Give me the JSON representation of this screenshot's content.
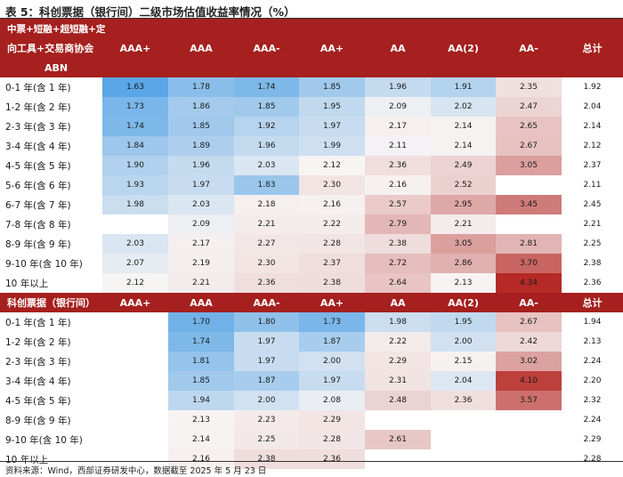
{
  "title": "表 5：科创票据（银行间）二级市场估值收益率情况（%）",
  "columns": [
    "AAA+",
    "AAA",
    "AAA-",
    "AA+",
    "AA",
    "AA(2)",
    "AA-",
    "总计"
  ],
  "section1": {
    "header_lines": [
      "中票+短融+超短融+定",
      "向工具+交易商协会",
      "ABN"
    ],
    "rows": [
      {
        "label": "0-1 年(含 1 年)",
        "values": [
          "1.63",
          "1.78",
          "1.74",
          "1.85",
          "1.96",
          "1.91",
          "2.35",
          "1.92"
        ]
      },
      {
        "label": "1-2 年(含 2 年)",
        "values": [
          "1.73",
          "1.86",
          "1.85",
          "1.95",
          "2.09",
          "2.02",
          "2.47",
          "2.04"
        ]
      },
      {
        "label": "2-3 年(含 3 年)",
        "values": [
          "1.74",
          "1.85",
          "1.92",
          "1.97",
          "2.17",
          "2.14",
          "2.65",
          "2.14"
        ]
      },
      {
        "label": "3-4 年(含 4 年)",
        "values": [
          "1.84",
          "1.89",
          "1.96",
          "1.99",
          "2.11",
          "2.14",
          "2.67",
          "2.12"
        ]
      },
      {
        "label": "4-5 年(含 5 年)",
        "values": [
          "1.90",
          "1.96",
          "2.03",
          "2.12",
          "2.36",
          "2.49",
          "3.05",
          "2.37"
        ]
      },
      {
        "label": "5-6 年(含 6 年)",
        "values": [
          "1.93",
          "1.97",
          "1.83",
          "2.30",
          "2.16",
          "2.52",
          "",
          "2.11"
        ]
      },
      {
        "label": "6-7 年(含 7 年)",
        "values": [
          "1.98",
          "2.03",
          "2.18",
          "2.16",
          "2.57",
          "2.95",
          "3.45",
          "2.45"
        ]
      },
      {
        "label": "7-8 年(含 8 年)",
        "values": [
          "",
          "2.09",
          "2.21",
          "2.22",
          "2.79",
          "2.21",
          "",
          "2.21"
        ]
      },
      {
        "label": "8-9 年(含 9 年)",
        "values": [
          "2.03",
          "2.17",
          "2.27",
          "2.28",
          "2.38",
          "3.05",
          "2.81",
          "2.25"
        ]
      },
      {
        "label": "9-10 年(含 10 年)",
        "values": [
          "2.07",
          "2.19",
          "2.30",
          "2.37",
          "2.72",
          "2.86",
          "3.70",
          "2.38"
        ]
      },
      {
        "label": "10 年以上",
        "values": [
          "2.12",
          "2.21",
          "2.36",
          "2.38",
          "2.64",
          "2.13",
          "4.34",
          "2.36"
        ]
      }
    ]
  },
  "section2": {
    "header_label": "科创票据（银行间）",
    "rows": [
      {
        "label": "0-1 年(含 1 年)",
        "values": [
          "",
          "1.70",
          "1.80",
          "1.73",
          "1.98",
          "1.95",
          "2.67",
          "1.94"
        ]
      },
      {
        "label": "1-2 年(含 2 年)",
        "values": [
          "",
          "1.74",
          "1.97",
          "1.87",
          "2.22",
          "2.00",
          "2.42",
          "2.13"
        ]
      },
      {
        "label": "2-3 年(含 3 年)",
        "values": [
          "",
          "1.81",
          "1.97",
          "2.00",
          "2.29",
          "2.15",
          "3.02",
          "2.24"
        ]
      },
      {
        "label": "3-4 年(含 4 年)",
        "values": [
          "",
          "1.85",
          "1.87",
          "1.97",
          "2.31",
          "2.04",
          "4.10",
          "2.20"
        ]
      },
      {
        "label": "4-5 年(含 5 年)",
        "values": [
          "",
          "1.94",
          "2.00",
          "2.08",
          "2.48",
          "2.36",
          "3.57",
          "2.32"
        ]
      },
      {
        "label": "8-9 年(含 9 年)",
        "values": [
          "",
          "2.13",
          "2.23",
          "2.29",
          "",
          "",
          "",
          "2.24"
        ]
      },
      {
        "label": "9-10 年(含 10 年)",
        "values": [
          "",
          "2.14",
          "2.25",
          "2.28",
          "2.61",
          "",
          "",
          "2.29"
        ]
      },
      {
        "label": "10 年以上",
        "values": [
          "",
          "2.16",
          "2.38",
          "2.36",
          "",
          "",
          "",
          "2.28"
        ]
      }
    ]
  },
  "footer": "资料来源：Wind，西部证券研发中心，数据截至 2025 年 5 月 23 日",
  "colors": {
    "header_bg": "#a5201e",
    "low": "#5aa6e6",
    "mid": "#f7f4f4",
    "high": "#b52a26"
  }
}
